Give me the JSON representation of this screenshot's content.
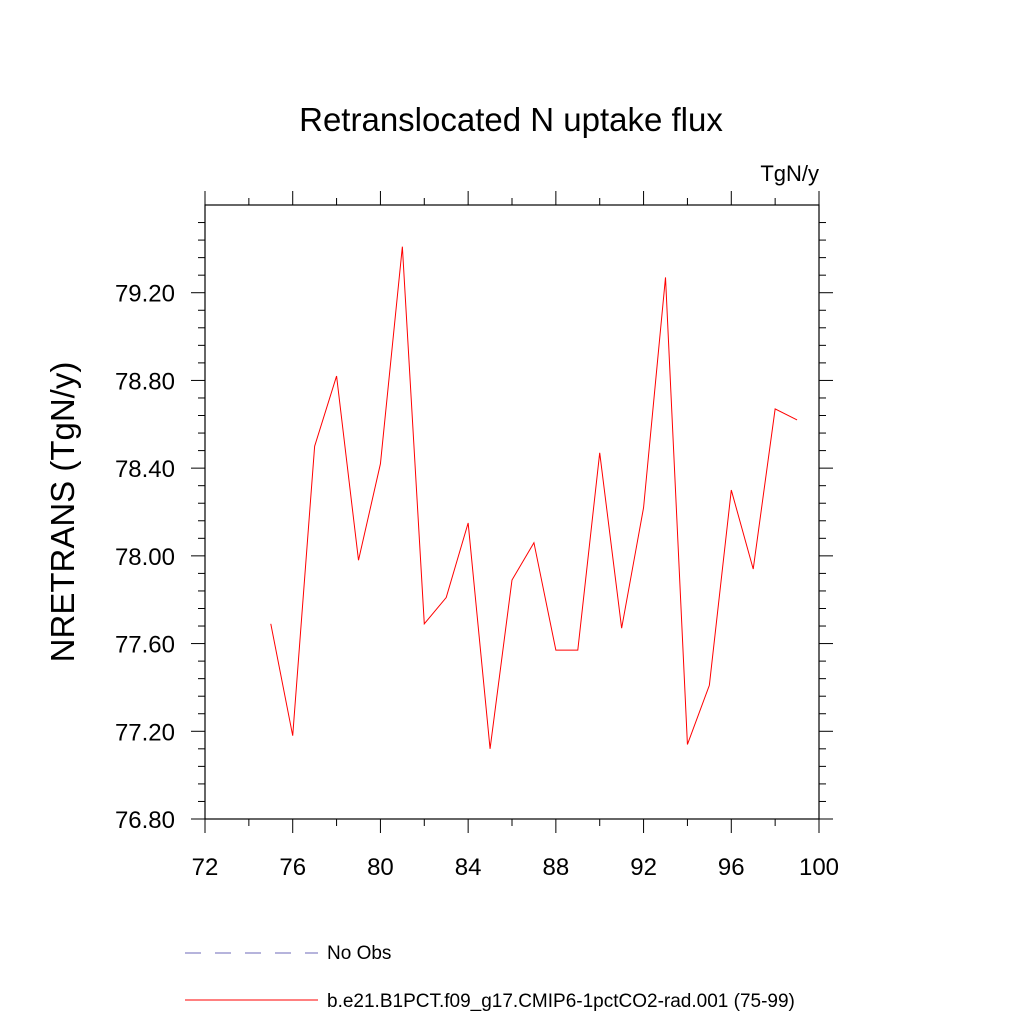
{
  "chart_data": {
    "type": "line",
    "title": "Retranslocated N uptake flux",
    "units": "TgN/y",
    "ylabel": "NRETRANS  (TgN/y)",
    "xlabel": "",
    "xlim": [
      72,
      100
    ],
    "ylim": [
      76.8,
      79.6
    ],
    "x_ticks": [
      "72",
      "76",
      "80",
      "84",
      "88",
      "92",
      "96",
      "100"
    ],
    "x_tick_values": [
      72,
      76,
      80,
      84,
      88,
      92,
      96,
      100
    ],
    "y_ticks": [
      "76.80",
      "77.20",
      "77.60",
      "78.00",
      "78.40",
      "78.80",
      "79.20"
    ],
    "y_tick_values": [
      76.8,
      77.2,
      77.6,
      78.0,
      78.4,
      78.8,
      79.2
    ],
    "grid": false,
    "legend_position": "bottom",
    "series": [
      {
        "name": "b.e21.B1PCT.f09_g17.CMIP6-1pctCO2-rad.001 (75-99)",
        "color": "#ff0000",
        "style": "solid",
        "x": [
          75,
          76,
          77,
          78,
          79,
          80,
          81,
          82,
          83,
          84,
          85,
          86,
          87,
          88,
          89,
          90,
          91,
          92,
          93,
          94,
          95,
          96,
          97,
          98,
          99
        ],
        "y": [
          77.69,
          77.18,
          78.5,
          78.82,
          77.98,
          78.42,
          79.41,
          77.69,
          77.81,
          78.15,
          77.12,
          77.89,
          78.06,
          77.57,
          77.57,
          78.47,
          77.67,
          78.22,
          79.27,
          77.14,
          77.41,
          78.3,
          77.94,
          78.67,
          78.62
        ]
      }
    ],
    "legend": [
      {
        "label": "No Obs",
        "color": "#8a86c8",
        "style": "dashed"
      },
      {
        "label": "b.e21.B1PCT.f09_g17.CMIP6-1pctCO2-rad.001 (75-99)",
        "color": "#ff0000",
        "style": "solid"
      }
    ]
  }
}
